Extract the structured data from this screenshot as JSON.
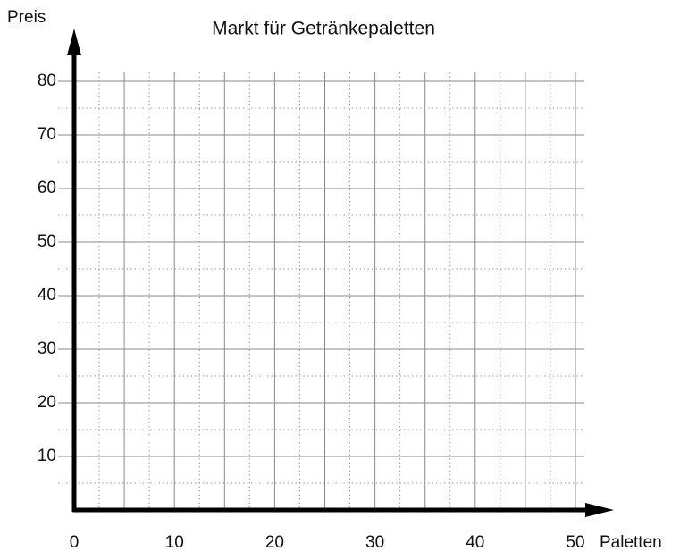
{
  "chart_data": {
    "type": "line",
    "title": "Markt für Getränkepaletten",
    "x_label": "Paletten",
    "y_label": "Preis",
    "xlim": [
      0,
      50
    ],
    "ylim": [
      0,
      80
    ],
    "xticks": [
      0,
      10,
      20,
      30,
      40,
      50
    ],
    "yticks": [
      10,
      20,
      30,
      40,
      50,
      60,
      70,
      80
    ],
    "grid": true,
    "xgrid": {
      "major": 5,
      "minor": 2.5
    },
    "ygrid": {
      "major": 10,
      "minor": 5
    },
    "series": []
  }
}
